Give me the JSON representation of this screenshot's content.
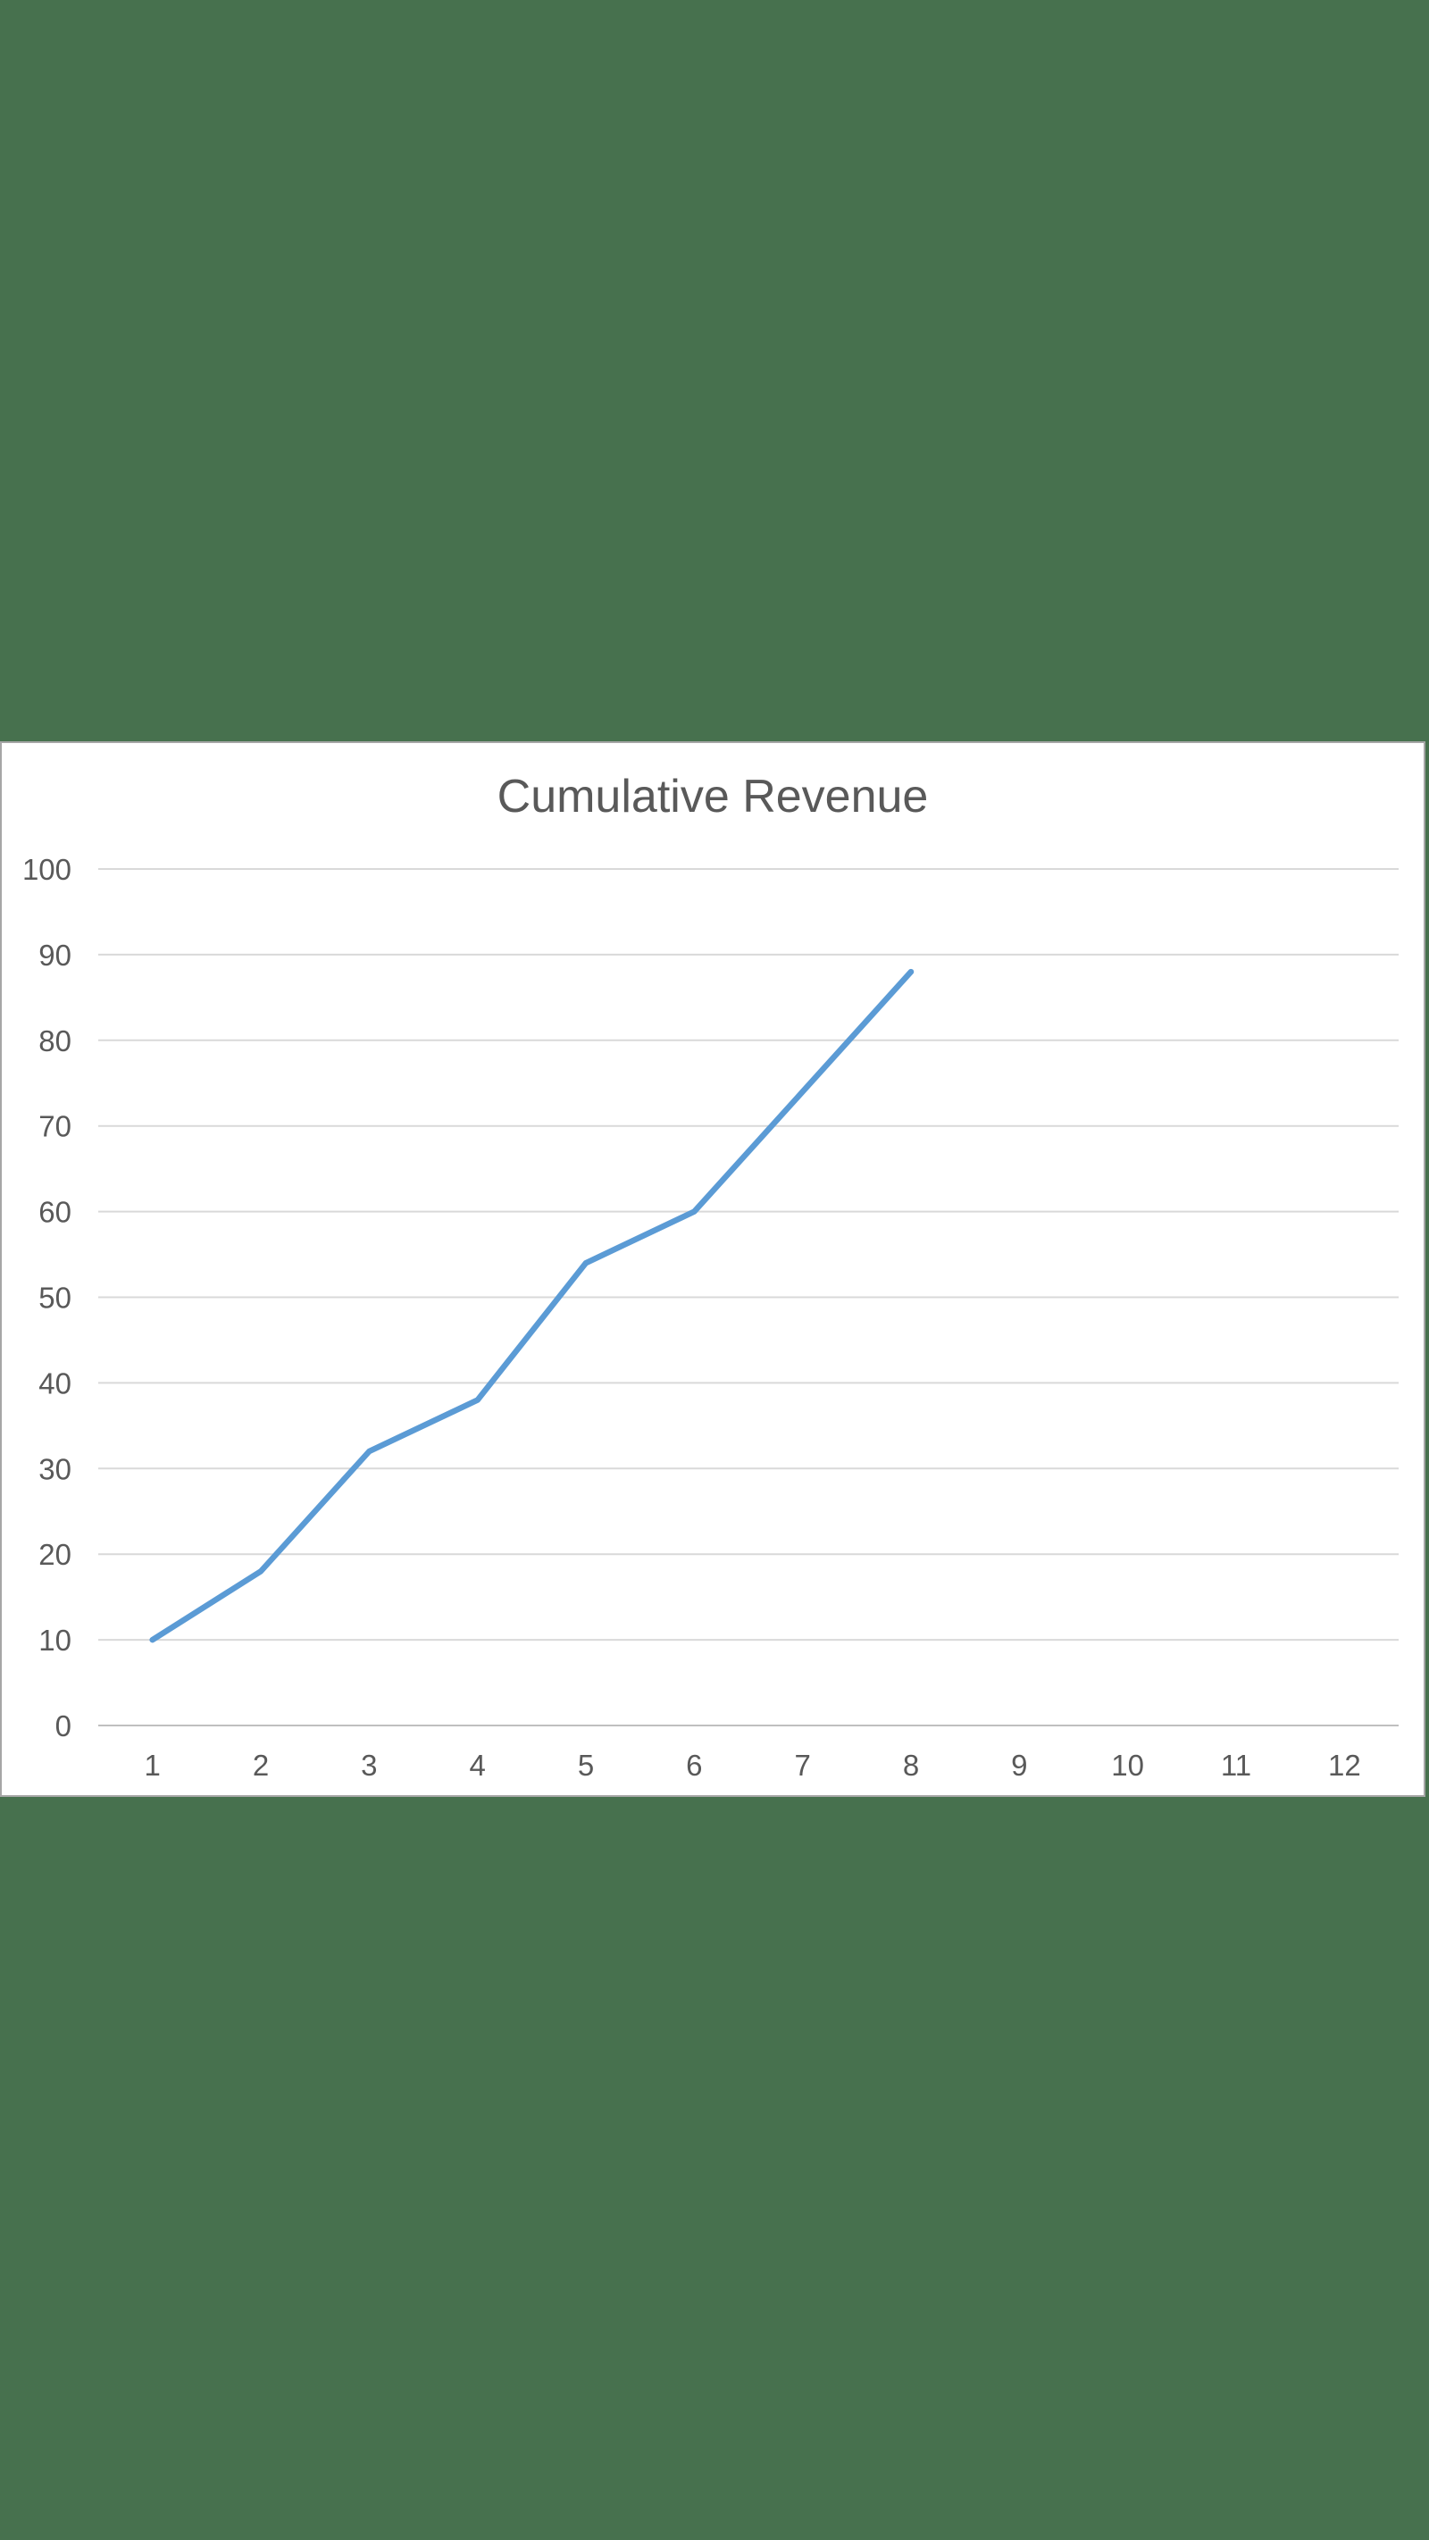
{
  "page": {
    "background_color": "#47714E"
  },
  "panel": {
    "background_color": "#FFFFFF",
    "border_color": "#A6A6A6"
  },
  "chart_data": {
    "type": "line",
    "title": "Cumulative Revenue",
    "title_color": "#595959",
    "xlabel": "",
    "ylabel": "",
    "categories": [
      "1",
      "2",
      "3",
      "4",
      "5",
      "6",
      "7",
      "8",
      "9",
      "10",
      "11",
      "12"
    ],
    "series": [
      {
        "name": "Cumulative Revenue",
        "color": "#5B9BD5",
        "values": [
          10,
          18,
          32,
          38,
          54,
          60,
          74,
          88
        ]
      }
    ],
    "ylim": [
      0,
      100
    ],
    "ytick_step": 10,
    "ytick_labels": [
      "0",
      "10",
      "20",
      "30",
      "40",
      "50",
      "60",
      "70",
      "80",
      "90",
      "100"
    ],
    "grid": true,
    "legend": false,
    "gridline_color": "#D9D9D9",
    "axis_line_color": "#BFBFBF",
    "tick_label_color": "#595959",
    "line_width": 6.5
  }
}
